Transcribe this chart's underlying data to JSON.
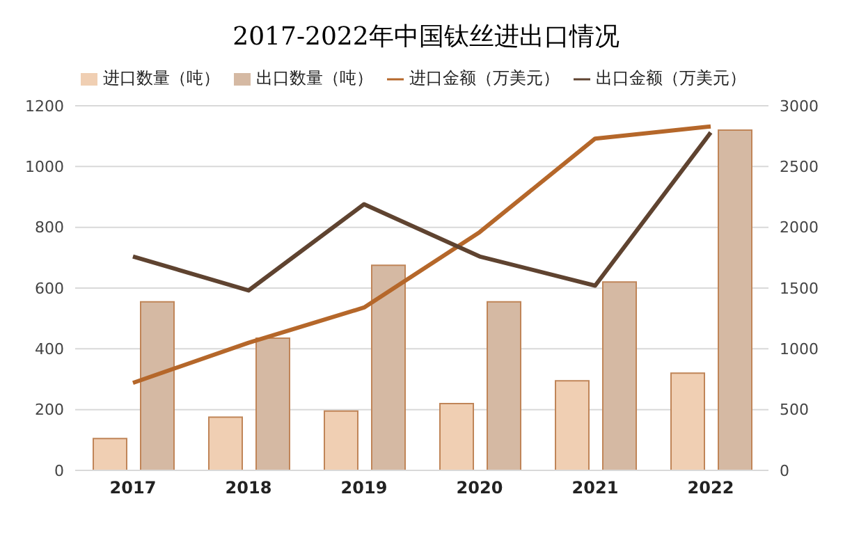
{
  "chart_data": {
    "type": "bar",
    "title": "2017-2022年中国钛丝进出口情况",
    "categories": [
      "2017",
      "2018",
      "2019",
      "2020",
      "2021",
      "2022"
    ],
    "series": [
      {
        "name": "进口数量（吨）",
        "color": "#f0cfb3",
        "values": [
          105,
          175,
          195,
          220,
          295,
          320
        ]
      },
      {
        "name": "出口数量（吨）",
        "color": "#d5b9a3",
        "values": [
          555,
          435,
          675,
          555,
          620,
          1120
        ]
      },
      {
        "name": "进口金额（万美元）",
        "type": "line",
        "axis": "y2",
        "color": "#b5672a",
        "values": [
          720,
          1050,
          1340,
          1960,
          2730,
          2830
        ]
      },
      {
        "name": "出口金额（万美元）",
        "type": "line",
        "axis": "y2",
        "color": "#5f4330",
        "values": [
          1760,
          1480,
          2190,
          1760,
          1520,
          2780
        ]
      }
    ],
    "ylim": [
      0,
      1200
    ],
    "yticks": [
      0,
      200,
      400,
      600,
      800,
      1000,
      1200
    ],
    "y2lim": [
      0,
      3000
    ],
    "y2ticks": [
      0,
      500,
      1000,
      1500,
      2000,
      2500,
      3000
    ],
    "grid": "y",
    "legend": "top",
    "marker": "none",
    "line_style": "solid"
  }
}
